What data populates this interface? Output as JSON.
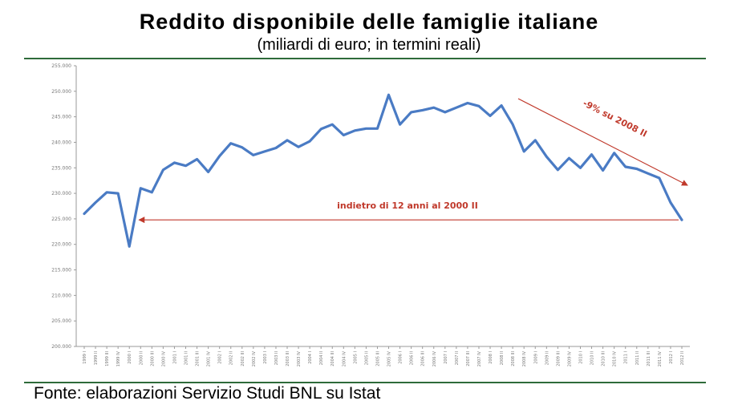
{
  "chart_data": {
    "type": "line",
    "title": "Reddito disponibile delle famiglie italiane",
    "subtitle": "(miliardi di euro; in termini reali)",
    "source": "Fonte: elaborazioni Servizio Studi BNL su Istat",
    "ylim": [
      200000,
      255000
    ],
    "yticks": [
      "200.000",
      "205.000",
      "210.000",
      "215.000",
      "220.000",
      "225.000",
      "230.000",
      "235.000",
      "240.000",
      "245.000",
      "250.000",
      "255.000"
    ],
    "categories": [
      "1999 I",
      "1999 II",
      "1999 III",
      "1999 IV",
      "2000 I",
      "2000 II",
      "2000 III",
      "2000 IV",
      "2001 I",
      "2001 II",
      "2001 III",
      "2001 IV",
      "2002 I",
      "2002 II",
      "2002 III",
      "2002 IV",
      "2003 I",
      "2003 II",
      "2003 III",
      "2003 IV",
      "2004 I",
      "2004 II",
      "2004 III",
      "2004 IV",
      "2005 I",
      "2005 II",
      "2005 III",
      "2005 IV",
      "2006 I",
      "2006 II",
      "2006 III",
      "2006 IV",
      "2007 I",
      "2007 II",
      "2007 III",
      "2007 IV",
      "2008 I",
      "2008 II",
      "2008 III",
      "2008 IV",
      "2009 I",
      "2009 II",
      "2009 III",
      "2009 IV",
      "2010 I",
      "2010 II",
      "2010 III",
      "2010 IV",
      "2011 I",
      "2011 II",
      "2011 III",
      "2011 IV",
      "2012 I",
      "2012 II"
    ],
    "series": [
      {
        "name": "",
        "color": "#4a7bc4",
        "values": [
          226000,
          228200,
          230200,
          230000,
          219600,
          231000,
          230200,
          234600,
          236000,
          235400,
          236700,
          234200,
          237300,
          239800,
          239000,
          237500,
          238200,
          238900,
          240400,
          239100,
          240200,
          242600,
          243500,
          241400,
          242300,
          242700,
          242700,
          249300,
          243500,
          245900,
          246300,
          246800,
          245900,
          246800,
          247700,
          247100,
          245200,
          247200,
          243500,
          238200,
          240400,
          237200,
          234600,
          236900,
          235000,
          237600,
          234500,
          237900,
          235200,
          234800,
          233900,
          233000,
          228200,
          224800
        ]
      }
    ],
    "annotations": [
      {
        "text": "indietro di 12 anni al 2000 II",
        "color": "#c0392b"
      },
      {
        "text": "-9% su 2008 II",
        "color": "#c0392b"
      }
    ],
    "grid": false,
    "legend": "none"
  }
}
